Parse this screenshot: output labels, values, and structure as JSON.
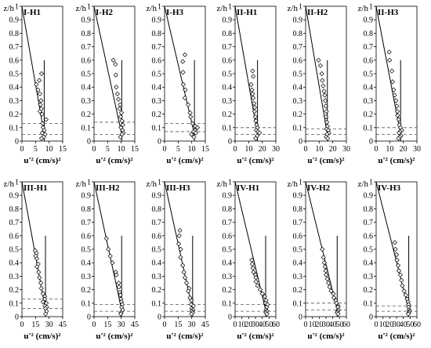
{
  "figure": {
    "y_axis_label": "z/h",
    "x_axis_label": "u'² (cm/s)²",
    "y_ticks": [
      "0",
      "0.1",
      "0.2",
      "0.3",
      "0.4",
      "0.5",
      "0.6",
      "0.7",
      "0.8",
      "0.9",
      "1"
    ]
  },
  "chart_data": [
    {
      "type": "scatter",
      "title": "I-H1",
      "xlim": [
        0,
        15
      ],
      "ylim": [
        0,
        1
      ],
      "x_ticks": [
        "0",
        "5",
        "10",
        "15"
      ],
      "points": [
        [
          7.2,
          0.5
        ],
        [
          6.4,
          0.45
        ],
        [
          5.3,
          0.42
        ],
        [
          5.9,
          0.38
        ],
        [
          6.6,
          0.35
        ],
        [
          7.0,
          0.3
        ],
        [
          6.8,
          0.27
        ],
        [
          7.1,
          0.24
        ],
        [
          6.6,
          0.22
        ],
        [
          7.4,
          0.2
        ],
        [
          8.9,
          0.16
        ],
        [
          7.6,
          0.13
        ],
        [
          7.8,
          0.1
        ],
        [
          8.2,
          0.08
        ],
        [
          7.5,
          0.06
        ],
        [
          8.5,
          0.05
        ],
        [
          8.0,
          0.03
        ],
        [
          7.2,
          0.02
        ]
      ],
      "line": [
        [
          0,
          1.0
        ],
        [
          8.2,
          0.05
        ]
      ],
      "vline": {
        "x": 8.2,
        "y": [
          0,
          0.6
        ]
      },
      "dashed": [
        0.13,
        0.05
      ]
    },
    {
      "type": "scatter",
      "title": "I-H2",
      "xlim": [
        0,
        15
      ],
      "ylim": [
        0,
        1
      ],
      "x_ticks": [
        "0",
        "5",
        "10",
        "15"
      ],
      "points": [
        [
          7.1,
          0.6
        ],
        [
          7.9,
          0.57
        ],
        [
          8.0,
          0.49
        ],
        [
          8.2,
          0.4
        ],
        [
          8.6,
          0.35
        ],
        [
          9.0,
          0.31
        ],
        [
          9.6,
          0.27
        ],
        [
          9.4,
          0.24
        ],
        [
          10.1,
          0.21
        ],
        [
          9.8,
          0.18
        ],
        [
          10.3,
          0.15
        ],
        [
          10.6,
          0.12
        ],
        [
          9.9,
          0.1
        ],
        [
          10.5,
          0.08
        ],
        [
          10.8,
          0.06
        ],
        [
          10.3,
          0.05
        ],
        [
          9.7,
          0.03
        ]
      ],
      "line": [
        [
          0,
          1.0
        ],
        [
          10.2,
          0.05
        ]
      ],
      "vline": {
        "x": 10.2,
        "y": [
          0,
          0.6
        ]
      },
      "dashed": [
        0.14,
        0.05
      ]
    },
    {
      "type": "scatter",
      "title": "I-H3",
      "xlim": [
        0,
        15
      ],
      "ylim": [
        0,
        1
      ],
      "x_ticks": [
        "0",
        "5",
        "10",
        "15"
      ],
      "points": [
        [
          7.5,
          0.64
        ],
        [
          6.7,
          0.59
        ],
        [
          6.8,
          0.51
        ],
        [
          6.9,
          0.42
        ],
        [
          7.6,
          0.38
        ],
        [
          7.5,
          0.32
        ],
        [
          8.7,
          0.27
        ],
        [
          9.4,
          0.21
        ],
        [
          9.6,
          0.18
        ],
        [
          10.3,
          0.13
        ],
        [
          11.3,
          0.11
        ],
        [
          12.1,
          0.1
        ],
        [
          11.2,
          0.08
        ],
        [
          10.7,
          0.07
        ],
        [
          9.9,
          0.05
        ],
        [
          11.5,
          0.06
        ],
        [
          10.8,
          0.03
        ]
      ],
      "line": [
        [
          0,
          1.0
        ],
        [
          11.0,
          0.05
        ]
      ],
      "vline": {
        "x": 11.0,
        "y": [
          0,
          0.6
        ]
      },
      "dashed": [
        0.13,
        0.07
      ]
    },
    {
      "type": "scatter",
      "title": "II-H1",
      "xlim": [
        0,
        30
      ],
      "ylim": [
        0,
        1
      ],
      "x_ticks": [
        "0",
        "10",
        "20",
        "30"
      ],
      "points": [
        [
          12.9,
          0.52
        ],
        [
          13.4,
          0.48
        ],
        [
          11.8,
          0.42
        ],
        [
          12.4,
          0.38
        ],
        [
          12.9,
          0.35
        ],
        [
          13.3,
          0.32
        ],
        [
          13.9,
          0.28
        ],
        [
          14.4,
          0.25
        ],
        [
          14.3,
          0.22
        ],
        [
          14.9,
          0.18
        ],
        [
          15.3,
          0.15
        ],
        [
          15.9,
          0.12
        ],
        [
          16.4,
          0.1
        ],
        [
          15.6,
          0.08
        ],
        [
          16.9,
          0.07
        ],
        [
          17.9,
          0.06
        ],
        [
          16.3,
          0.04
        ],
        [
          15.2,
          0.02
        ]
      ],
      "line": [
        [
          0,
          1.0
        ],
        [
          16.5,
          0.05
        ]
      ],
      "vline": {
        "x": 16.5,
        "y": [
          0,
          0.6
        ]
      },
      "dashed": [
        0.1,
        0.05
      ]
    },
    {
      "type": "scatter",
      "title": "II-H2",
      "xlim": [
        0,
        30
      ],
      "ylim": [
        0,
        1
      ],
      "x_ticks": [
        "0",
        "10",
        "20",
        "30"
      ],
      "points": [
        [
          9.5,
          0.6
        ],
        [
          10.9,
          0.56
        ],
        [
          11.9,
          0.5
        ],
        [
          12.3,
          0.45
        ],
        [
          12.9,
          0.41
        ],
        [
          13.5,
          0.37
        ],
        [
          14.1,
          0.34
        ],
        [
          14.5,
          0.3
        ],
        [
          14.9,
          0.26
        ],
        [
          15.3,
          0.22
        ],
        [
          15.0,
          0.18
        ],
        [
          15.6,
          0.14
        ],
        [
          16.1,
          0.11
        ],
        [
          15.4,
          0.09
        ],
        [
          16.7,
          0.08
        ],
        [
          17.1,
          0.06
        ],
        [
          15.8,
          0.05
        ],
        [
          15.1,
          0.03
        ],
        [
          16.3,
          0.02
        ]
      ],
      "line": [
        [
          0,
          1.0
        ],
        [
          16.0,
          0.05
        ]
      ],
      "vline": {
        "x": 16.0,
        "y": [
          0,
          0.6
        ]
      },
      "dashed": [
        0.09,
        0.05
      ]
    },
    {
      "type": "scatter",
      "title": "II-H3",
      "xlim": [
        0,
        30
      ],
      "ylim": [
        0,
        1
      ],
      "x_ticks": [
        "0",
        "10",
        "20",
        "30"
      ],
      "points": [
        [
          9.6,
          0.66
        ],
        [
          9.9,
          0.6
        ],
        [
          11.6,
          0.52
        ],
        [
          12.1,
          0.44
        ],
        [
          12.9,
          0.38
        ],
        [
          13.6,
          0.34
        ],
        [
          14.6,
          0.3
        ],
        [
          15.3,
          0.26
        ],
        [
          15.6,
          0.22
        ],
        [
          15.8,
          0.19
        ],
        [
          16.6,
          0.16
        ],
        [
          17.1,
          0.12
        ],
        [
          17.9,
          0.1
        ],
        [
          18.9,
          0.08
        ],
        [
          17.6,
          0.07
        ],
        [
          16.8,
          0.06
        ],
        [
          18.3,
          0.04
        ],
        [
          17.3,
          0.03
        ],
        [
          16.4,
          0.02
        ]
      ],
      "line": [
        [
          0,
          1.0
        ],
        [
          18.0,
          0.05
        ]
      ],
      "vline": {
        "x": 18.0,
        "y": [
          0,
          0.6
        ]
      },
      "dashed": [
        0.1,
        0.05
      ]
    },
    {
      "type": "scatter",
      "title": "III-H1",
      "xlim": [
        0,
        45
      ],
      "ylim": [
        0,
        1
      ],
      "x_ticks": [
        "0",
        "15",
        "30",
        "45"
      ],
      "points": [
        [
          14.6,
          0.49
        ],
        [
          16.0,
          0.47
        ],
        [
          15.2,
          0.45
        ],
        [
          16.4,
          0.43
        ],
        [
          17.9,
          0.39
        ],
        [
          16.5,
          0.37
        ],
        [
          18.4,
          0.33
        ],
        [
          19.3,
          0.29
        ],
        [
          20.9,
          0.25
        ],
        [
          21.4,
          0.21
        ],
        [
          23.4,
          0.17
        ],
        [
          25.2,
          0.15
        ],
        [
          25.3,
          0.13
        ],
        [
          23.3,
          0.11
        ],
        [
          26.9,
          0.1
        ],
        [
          25.3,
          0.08
        ],
        [
          27.4,
          0.07
        ],
        [
          25.9,
          0.06
        ],
        [
          27.1,
          0.04
        ],
        [
          26.1,
          0.02
        ]
      ],
      "line": [
        [
          0,
          1.0
        ],
        [
          26.0,
          0.05
        ]
      ],
      "vline": {
        "x": 26.0,
        "y": [
          0,
          0.6
        ]
      },
      "dashed": [
        0.13,
        0.06
      ]
    },
    {
      "type": "scatter",
      "title": "III-H2",
      "xlim": [
        0,
        45
      ],
      "ylim": [
        0,
        1
      ],
      "x_ticks": [
        "0",
        "15",
        "30",
        "45"
      ],
      "points": [
        [
          13.7,
          0.58
        ],
        [
          15.8,
          0.5
        ],
        [
          17.9,
          0.45
        ],
        [
          20.3,
          0.4
        ],
        [
          23.9,
          0.33
        ],
        [
          24.5,
          0.31
        ],
        [
          27.2,
          0.25
        ],
        [
          27.5,
          0.22
        ],
        [
          28.5,
          0.18
        ],
        [
          29.2,
          0.16
        ],
        [
          29.7,
          0.13
        ],
        [
          30.2,
          0.11
        ],
        [
          31.2,
          0.09
        ],
        [
          30.5,
          0.07
        ],
        [
          31.6,
          0.05
        ],
        [
          30.0,
          0.03
        ],
        [
          29.4,
          0.02
        ]
      ],
      "line": [
        [
          0,
          1.0
        ],
        [
          30.5,
          0.05
        ]
      ],
      "vline": {
        "x": 30.5,
        "y": [
          0,
          0.6
        ]
      },
      "dashed": [
        0.09,
        0.04
      ]
    },
    {
      "type": "scatter",
      "title": "III-H3",
      "xlim": [
        0,
        45
      ],
      "ylim": [
        0,
        1
      ],
      "x_ticks": [
        "0",
        "15",
        "30",
        "45"
      ],
      "points": [
        [
          17.0,
          0.64
        ],
        [
          16.2,
          0.6
        ],
        [
          15.6,
          0.54
        ],
        [
          17.8,
          0.5
        ],
        [
          17.6,
          0.44
        ],
        [
          20.1,
          0.38
        ],
        [
          21.4,
          0.33
        ],
        [
          22.5,
          0.29
        ],
        [
          24.3,
          0.25
        ],
        [
          27.1,
          0.21
        ],
        [
          26.2,
          0.19
        ],
        [
          28.1,
          0.14
        ],
        [
          29.6,
          0.12
        ],
        [
          29.5,
          0.09
        ],
        [
          31.9,
          0.08
        ],
        [
          29.9,
          0.06
        ],
        [
          31.3,
          0.05
        ],
        [
          30.2,
          0.04
        ],
        [
          31.1,
          0.03
        ],
        [
          29.8,
          0.02
        ]
      ],
      "line": [
        [
          0,
          1.0
        ],
        [
          31.0,
          0.05
        ]
      ],
      "vline": {
        "x": 31.0,
        "y": [
          0,
          0.6
        ]
      },
      "dashed": [
        0.09,
        0.04
      ]
    },
    {
      "type": "scatter",
      "title": "IV-H1",
      "xlim": [
        0,
        60
      ],
      "ylim": [
        0,
        1
      ],
      "x_ticks": [
        "0",
        "10",
        "20",
        "30",
        "40",
        "50",
        "60"
      ],
      "points": [
        [
          24.6,
          0.42
        ],
        [
          25.4,
          0.39
        ],
        [
          26.3,
          0.36
        ],
        [
          27.2,
          0.33
        ],
        [
          29.9,
          0.31
        ],
        [
          30.6,
          0.29
        ],
        [
          30.8,
          0.26
        ],
        [
          33.1,
          0.23
        ],
        [
          36.9,
          0.2
        ],
        [
          40.2,
          0.17
        ],
        [
          43.6,
          0.15
        ],
        [
          45.5,
          0.12
        ],
        [
          44.8,
          0.1
        ],
        [
          47.6,
          0.09
        ],
        [
          46.4,
          0.07
        ],
        [
          45.6,
          0.05
        ],
        [
          46.7,
          0.04
        ],
        [
          45.3,
          0.03
        ],
        [
          46.8,
          0.02
        ]
      ],
      "line": [
        [
          0,
          1.0
        ],
        [
          45.0,
          0.05
        ]
      ],
      "vline": {
        "x": 45.0,
        "y": [
          0,
          0.6
        ]
      },
      "dashed": [
        0.09,
        0.04
      ]
    },
    {
      "type": "scatter",
      "title": "IV-H2",
      "xlim": [
        0,
        60
      ],
      "ylim": [
        0,
        1
      ],
      "x_ticks": [
        "0",
        "10",
        "20",
        "30",
        "40",
        "50",
        "60"
      ],
      "points": [
        [
          24.5,
          0.5
        ],
        [
          26.1,
          0.44
        ],
        [
          27.5,
          0.4
        ],
        [
          28.7,
          0.37
        ],
        [
          29.6,
          0.34
        ],
        [
          30.3,
          0.31
        ],
        [
          31.9,
          0.28
        ],
        [
          33.6,
          0.25
        ],
        [
          35.4,
          0.22
        ],
        [
          37.5,
          0.19
        ],
        [
          40.9,
          0.17
        ],
        [
          41.6,
          0.14
        ],
        [
          44.5,
          0.12
        ],
        [
          45.4,
          0.1
        ],
        [
          47.9,
          0.08
        ],
        [
          47.5,
          0.07
        ],
        [
          48.4,
          0.05
        ],
        [
          47.1,
          0.04
        ],
        [
          46.4,
          0.03
        ],
        [
          47.8,
          0.02
        ]
      ],
      "line": [
        [
          0,
          1.0
        ],
        [
          46.5,
          0.05
        ]
      ],
      "vline": {
        "x": 46.5,
        "y": [
          0,
          0.6
        ]
      },
      "dashed": [
        0.1,
        0.05
      ]
    },
    {
      "type": "scatter",
      "title": "IV-H3",
      "xlim": [
        0,
        60
      ],
      "ylim": [
        0,
        1
      ],
      "x_ticks": [
        "0",
        "10",
        "20",
        "30",
        "40",
        "50",
        "60"
      ],
      "points": [
        [
          27.4,
          0.55
        ],
        [
          28.4,
          0.5
        ],
        [
          30.0,
          0.46
        ],
        [
          30.8,
          0.42
        ],
        [
          32.3,
          0.38
        ],
        [
          33.4,
          0.34
        ],
        [
          35.6,
          0.31
        ],
        [
          37.3,
          0.27
        ],
        [
          38.6,
          0.23
        ],
        [
          41.2,
          0.19
        ],
        [
          43.6,
          0.16
        ],
        [
          45.7,
          0.13
        ],
        [
          47.0,
          0.11
        ],
        [
          47.8,
          0.09
        ],
        [
          47.9,
          0.07
        ],
        [
          48.4,
          0.05
        ],
        [
          49.3,
          0.04
        ],
        [
          48.1,
          0.03
        ],
        [
          47.3,
          0.02
        ]
      ],
      "line": [
        [
          0,
          1.0
        ],
        [
          48.0,
          0.05
        ]
      ],
      "vline": {
        "x": 48.0,
        "y": [
          0,
          0.6
        ]
      },
      "dashed": [
        0.08,
        0.04
      ]
    }
  ]
}
